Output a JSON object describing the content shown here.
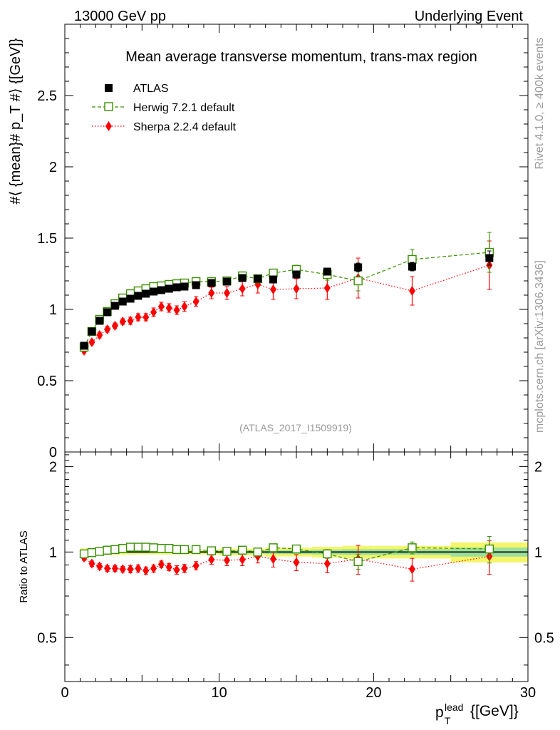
{
  "header": {
    "left": "13000 GeV pp",
    "right": "Underlying Event"
  },
  "side_labels": {
    "rivet": "Rivet 4.1.0, ≥ 400k events",
    "mcplots": "mcplots.cern.ch [arXiv:1306.3436]"
  },
  "analysis_id": "(ATLAS_2017_I1509919)",
  "colors": {
    "data": "#000000",
    "herwig": "#3a8f00",
    "sherpa": "#ff0000",
    "band_outer": "#f5f56a",
    "band_inner": "#9be09b"
  },
  "chart_data": [
    {
      "type": "scatter",
      "title": "Mean average transverse momentum, trans-max region",
      "xlabel": "p_T^lead [GeV]",
      "ylabel": "#⟨ {mean}# p_T #⟩ {[GeV]}",
      "xlim": [
        0,
        30
      ],
      "ylim": [
        0,
        3.0
      ],
      "yticks": [
        {
          "v": 0.5,
          "label": "0.5"
        },
        {
          "v": 1,
          "label": "1"
        },
        {
          "v": 1.5,
          "label": "1.5"
        },
        {
          "v": 2,
          "label": "2"
        },
        {
          "v": 2.5,
          "label": "2.5"
        },
        {
          "v": 0,
          "label": "0"
        }
      ],
      "legend_position": "top-left",
      "series": [
        {
          "name": "ATLAS",
          "style": "data",
          "x": [
            1.25,
            1.75,
            2.25,
            2.75,
            3.25,
            3.75,
            4.25,
            4.75,
            5.25,
            5.75,
            6.25,
            6.75,
            7.25,
            7.75,
            8.5,
            9.5,
            10.5,
            11.5,
            12.5,
            13.5,
            15,
            17,
            19,
            22.5,
            27.5
          ],
          "y": [
            0.745,
            0.845,
            0.92,
            0.98,
            1.025,
            1.055,
            1.075,
            1.095,
            1.11,
            1.125,
            1.135,
            1.145,
            1.155,
            1.16,
            1.17,
            1.185,
            1.195,
            1.22,
            1.215,
            1.21,
            1.245,
            1.265,
            1.295,
            1.3,
            1.36
          ],
          "err": [
            0.01,
            0.01,
            0.01,
            0.01,
            0.01,
            0.01,
            0.01,
            0.01,
            0.01,
            0.01,
            0.01,
            0.01,
            0.01,
            0.01,
            0.01,
            0.01,
            0.015,
            0.015,
            0.015,
            0.02,
            0.02,
            0.025,
            0.03,
            0.03,
            0.05
          ]
        },
        {
          "name": "Herwig 7.2.1 default",
          "style": "herwig",
          "x": [
            1.25,
            1.75,
            2.25,
            2.75,
            3.25,
            3.75,
            4.25,
            4.75,
            5.25,
            5.75,
            6.25,
            6.75,
            7.25,
            7.75,
            8.5,
            9.5,
            10.5,
            11.5,
            12.5,
            13.5,
            15,
            17,
            19,
            22.5,
            27.5
          ],
          "y": [
            0.735,
            0.845,
            0.93,
            0.985,
            1.04,
            1.08,
            1.11,
            1.13,
            1.145,
            1.16,
            1.165,
            1.175,
            1.18,
            1.185,
            1.195,
            1.195,
            1.2,
            1.235,
            1.215,
            1.255,
            1.28,
            1.245,
            1.2,
            1.35,
            1.4
          ],
          "err": [
            0.01,
            0.01,
            0.01,
            0.01,
            0.01,
            0.01,
            0.01,
            0.01,
            0.01,
            0.01,
            0.01,
            0.01,
            0.01,
            0.01,
            0.015,
            0.015,
            0.015,
            0.02,
            0.02,
            0.025,
            0.03,
            0.04,
            0.07,
            0.07,
            0.14
          ]
        },
        {
          "name": "Sherpa 2.2.4 default",
          "style": "sherpa",
          "x": [
            1.25,
            1.75,
            2.25,
            2.75,
            3.25,
            3.75,
            4.25,
            4.75,
            5.25,
            5.75,
            6.25,
            6.75,
            7.25,
            7.75,
            8.5,
            9.5,
            10.5,
            11.5,
            12.5,
            13.5,
            15,
            17,
            19,
            22.5,
            27.5
          ],
          "y": [
            0.71,
            0.77,
            0.82,
            0.86,
            0.885,
            0.915,
            0.92,
            0.945,
            0.945,
            0.98,
            1.02,
            1.01,
            0.995,
            1.02,
            1.055,
            1.115,
            1.115,
            1.145,
            1.175,
            1.14,
            1.145,
            1.15,
            1.22,
            1.13,
            1.31
          ],
          "err": [
            0.015,
            0.015,
            0.02,
            0.02,
            0.02,
            0.02,
            0.025,
            0.025,
            0.025,
            0.03,
            0.03,
            0.03,
            0.03,
            0.035,
            0.035,
            0.04,
            0.045,
            0.05,
            0.06,
            0.07,
            0.07,
            0.08,
            0.14,
            0.1,
            0.17
          ]
        }
      ]
    },
    {
      "type": "scatter",
      "title": "",
      "xlabel": "p_T^lead [GeV]",
      "ylabel": "Ratio to ATLAS",
      "xlim": [
        0,
        30
      ],
      "ylim": [
        0.35,
        2.25
      ],
      "yticks": [
        {
          "v": 0.5,
          "label": "0.5"
        },
        {
          "v": 1,
          "label": "1"
        },
        {
          "v": 2,
          "label": "2"
        }
      ],
      "xticks": [
        {
          "v": 0,
          "label": "0"
        },
        {
          "v": 10,
          "label": "10"
        },
        {
          "v": 20,
          "label": "20"
        },
        {
          "v": 30,
          "label": "30"
        }
      ],
      "series": [
        {
          "name": "Herwig 7.2.1 default",
          "style": "herwig",
          "x": [
            1.25,
            1.75,
            2.25,
            2.75,
            3.25,
            3.75,
            4.25,
            4.75,
            5.25,
            5.75,
            6.25,
            6.75,
            7.25,
            7.75,
            8.5,
            9.5,
            10.5,
            11.5,
            12.5,
            13.5,
            15,
            17,
            19,
            22.5,
            27.5
          ],
          "y": [
            0.985,
            0.995,
            1.005,
            1.015,
            1.02,
            1.03,
            1.04,
            1.04,
            1.04,
            1.035,
            1.03,
            1.03,
            1.02,
            1.02,
            1.02,
            1.01,
            1.005,
            1.015,
            1.0,
            1.035,
            1.025,
            0.985,
            0.925,
            1.035,
            1.025
          ],
          "err": [
            0.01,
            0.01,
            0.01,
            0.01,
            0.01,
            0.01,
            0.01,
            0.01,
            0.01,
            0.01,
            0.01,
            0.01,
            0.01,
            0.01,
            0.015,
            0.015,
            0.015,
            0.02,
            0.02,
            0.02,
            0.025,
            0.035,
            0.055,
            0.05,
            0.11
          ]
        },
        {
          "name": "Sherpa 2.2.4 default",
          "style": "sherpa",
          "x": [
            1.25,
            1.75,
            2.25,
            2.75,
            3.25,
            3.75,
            4.25,
            4.75,
            5.25,
            5.75,
            6.25,
            6.75,
            7.25,
            7.75,
            8.5,
            9.5,
            10.5,
            11.5,
            12.5,
            13.5,
            15,
            17,
            19,
            22.5,
            27.5
          ],
          "y": [
            0.955,
            0.91,
            0.89,
            0.875,
            0.875,
            0.87,
            0.87,
            0.875,
            0.86,
            0.875,
            0.905,
            0.885,
            0.865,
            0.875,
            0.895,
            0.94,
            0.935,
            0.94,
            0.965,
            0.945,
            0.92,
            0.91,
            0.945,
            0.87,
            0.965
          ],
          "err": [
            0.02,
            0.02,
            0.02,
            0.02,
            0.02,
            0.02,
            0.025,
            0.025,
            0.025,
            0.025,
            0.025,
            0.025,
            0.03,
            0.03,
            0.03,
            0.035,
            0.04,
            0.045,
            0.05,
            0.06,
            0.06,
            0.065,
            0.11,
            0.08,
            0.13
          ]
        }
      ]
    }
  ]
}
